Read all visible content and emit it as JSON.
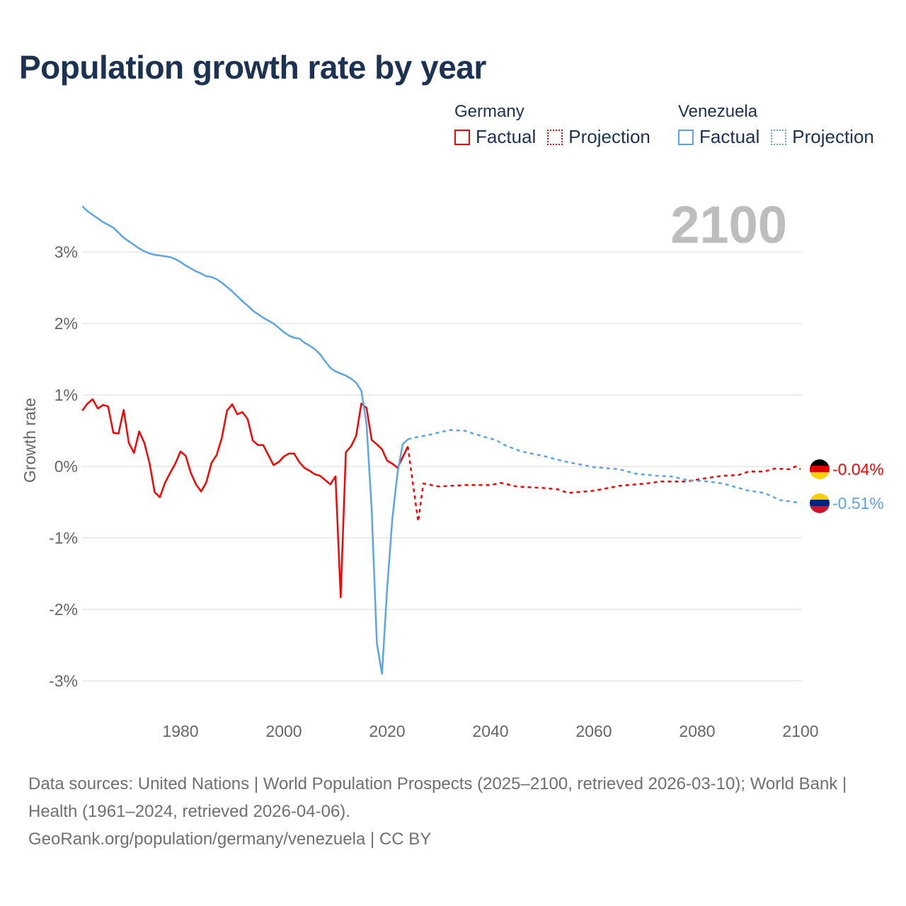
{
  "title": "Population growth rate by year",
  "legend": {
    "groups": [
      {
        "name": "Germany",
        "color": "#ff0000",
        "factual": "Factual",
        "projection": "Projection"
      },
      {
        "name": "Venezuela",
        "color": "#5aa5e8",
        "factual": "Factual",
        "projection": "Projection"
      }
    ]
  },
  "year_label": "2100",
  "end_labels": {
    "germany": "-0.04%",
    "venezuela": "-0.51%"
  },
  "flags": {
    "germany": "germany-flag",
    "venezuela": "venezuela-flag"
  },
  "footer": {
    "sources": "Data sources: United Nations | World Population Prospects (2025–2100, retrieved 2026-03-10); World Bank | Health (1961–2024, retrieved 2026-04-06).",
    "link": "GeoRank.org/population/germany/venezuela | CC BY"
  },
  "chart_data": {
    "type": "line",
    "title": "Population growth rate by year",
    "xlabel": "",
    "ylabel": "Growth rate",
    "xlim": [
      1961,
      2100
    ],
    "ylim": [
      -3.5,
      3.8
    ],
    "grid": true,
    "legend_position": "top-right",
    "xticks": [
      1980,
      2000,
      2020,
      2040,
      2060,
      2080,
      2100
    ],
    "xtick_labels": [
      "1980",
      "2000",
      "2020",
      "2040",
      "2060",
      "2080",
      "2100"
    ],
    "yticks": [
      3,
      2,
      1,
      0,
      -1,
      -2,
      -3
    ],
    "ytick_labels": [
      "3%",
      "2%",
      "1%",
      "0%",
      "-1%",
      "-2%",
      "-3%"
    ],
    "series": [
      {
        "name": "Germany",
        "kind": "factual",
        "color": "#ff0000",
        "x": [
          1961,
          1962,
          1963,
          1964,
          1965,
          1966,
          1967,
          1968,
          1969,
          1970,
          1971,
          1972,
          1973,
          1974,
          1975,
          1976,
          1977,
          1978,
          1979,
          1980,
          1981,
          1982,
          1983,
          1984,
          1985,
          1986,
          1987,
          1988,
          1989,
          1990,
          1991,
          1992,
          1993,
          1994,
          1995,
          1996,
          1997,
          1998,
          1999,
          2000,
          2001,
          2002,
          2003,
          2004,
          2005,
          2006,
          2007,
          2008,
          2009,
          2010,
          2011,
          2012,
          2013,
          2014,
          2015,
          2016,
          2017,
          2018,
          2019,
          2020,
          2021,
          2022,
          2023,
          2024
        ],
        "y": [
          0.78,
          0.88,
          0.94,
          0.81,
          0.86,
          0.84,
          0.47,
          0.46,
          0.79,
          0.33,
          0.19,
          0.49,
          0.33,
          0.05,
          -0.36,
          -0.43,
          -0.23,
          -0.09,
          0.04,
          0.21,
          0.15,
          -0.09,
          -0.25,
          -0.35,
          -0.22,
          0.05,
          0.16,
          0.4,
          0.78,
          0.87,
          0.73,
          0.76,
          0.66,
          0.36,
          0.3,
          0.3,
          0.16,
          0.02,
          0.06,
          0.14,
          0.18,
          0.18,
          0.06,
          -0.02,
          -0.06,
          -0.11,
          -0.13,
          -0.19,
          -0.25,
          -0.14,
          -1.83,
          0.2,
          0.28,
          0.43,
          0.88,
          0.82,
          0.37,
          0.31,
          0.24,
          0.08,
          0.04,
          -0.02,
          0.13,
          0.28
        ]
      },
      {
        "name": "Germany",
        "kind": "projection",
        "color": "#ff0000",
        "x": [
          2024,
          2025,
          2026,
          2027,
          2030,
          2035,
          2040,
          2042,
          2045,
          2050,
          2053,
          2055,
          2060,
          2065,
          2070,
          2073,
          2078,
          2082,
          2085,
          2088,
          2090,
          2093,
          2095,
          2098,
          2099,
          2100
        ],
        "y": [
          0.28,
          -0.25,
          -0.77,
          -0.24,
          -0.28,
          -0.26,
          -0.26,
          -0.23,
          -0.28,
          -0.3,
          -0.32,
          -0.37,
          -0.34,
          -0.27,
          -0.24,
          -0.21,
          -0.21,
          -0.16,
          -0.13,
          -0.12,
          -0.07,
          -0.07,
          -0.03,
          -0.04,
          0.0,
          -0.04
        ]
      },
      {
        "name": "Venezuela",
        "kind": "factual",
        "color": "#5aa5e8",
        "x": [
          1961,
          1962,
          1963,
          1964,
          1965,
          1966,
          1967,
          1968,
          1969,
          1970,
          1971,
          1972,
          1973,
          1974,
          1975,
          1976,
          1977,
          1978,
          1979,
          1980,
          1981,
          1982,
          1983,
          1984,
          1985,
          1986,
          1987,
          1988,
          1989,
          1990,
          1991,
          1992,
          1993,
          1994,
          1995,
          1996,
          1997,
          1998,
          1999,
          2000,
          2001,
          2002,
          2003,
          2004,
          2005,
          2006,
          2007,
          2008,
          2009,
          2010,
          2011,
          2012,
          2013,
          2014,
          2015,
          2016,
          2017,
          2018,
          2019,
          2020,
          2021,
          2022,
          2023,
          2024
        ],
        "y": [
          3.64,
          3.57,
          3.52,
          3.47,
          3.42,
          3.38,
          3.34,
          3.27,
          3.2,
          3.15,
          3.1,
          3.05,
          3.01,
          2.98,
          2.96,
          2.95,
          2.94,
          2.93,
          2.9,
          2.86,
          2.81,
          2.77,
          2.73,
          2.7,
          2.66,
          2.65,
          2.62,
          2.57,
          2.51,
          2.45,
          2.38,
          2.31,
          2.25,
          2.18,
          2.13,
          2.08,
          2.04,
          2.0,
          1.94,
          1.88,
          1.83,
          1.8,
          1.79,
          1.73,
          1.69,
          1.64,
          1.57,
          1.47,
          1.38,
          1.33,
          1.3,
          1.27,
          1.23,
          1.17,
          1.06,
          0.6,
          -0.6,
          -2.47,
          -2.9,
          -1.7,
          -0.73,
          -0.09,
          0.31,
          0.38
        ]
      },
      {
        "name": "Venezuela",
        "kind": "projection",
        "color": "#5aa5e8",
        "x": [
          2024,
          2025,
          2028,
          2032,
          2035,
          2038,
          2041,
          2043,
          2046,
          2050,
          2055,
          2060,
          2065,
          2068,
          2072,
          2075,
          2078,
          2082,
          2085,
          2090,
          2093,
          2096,
          2100
        ],
        "y": [
          0.38,
          0.4,
          0.44,
          0.51,
          0.5,
          0.43,
          0.37,
          0.29,
          0.21,
          0.15,
          0.06,
          -0.01,
          -0.04,
          -0.1,
          -0.13,
          -0.14,
          -0.19,
          -0.21,
          -0.24,
          -0.34,
          -0.37,
          -0.47,
          -0.51
        ]
      }
    ]
  }
}
